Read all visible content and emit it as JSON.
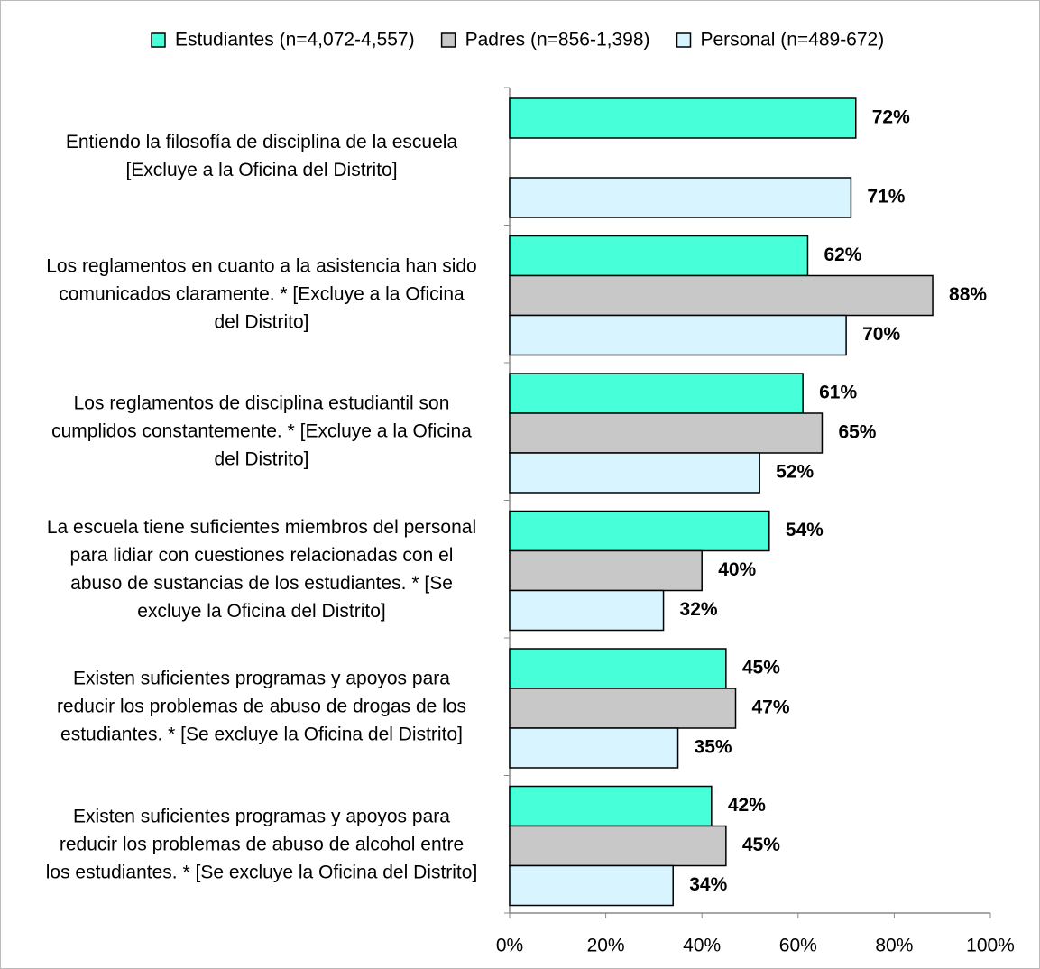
{
  "chart_data": {
    "type": "bar",
    "orientation": "horizontal",
    "categories": [
      "Entiendo la filosofía de disciplina de la escuela [Excluye a la Oficina del Distrito]",
      "Los reglamentos en cuanto a la asistencia han sido comunicados claramente. * [Excluye a la Oficina del Distrito]",
      "Los reglamentos de disciplina estudiantil son cumplidos constantemente. * [Excluye a la Oficina del Distrito]",
      "La escuela tiene suficientes miembros del personal para lidiar con cuestiones relacionadas con el abuso de sustancias de los estudiantes. * [Se excluye la Oficina del Distrito]",
      "Existen suficientes programas y apoyos para reducir los problemas de abuso de drogas de los estudiantes. * [Se excluye la Oficina del Distrito]",
      "Existen suficientes programas y apoyos para reducir los problemas de abuso de alcohol entre los estudiantes. * [Se excluye la Oficina del Distrito]"
    ],
    "series": [
      {
        "name": "Estudiantes (n=4,072-4,557)",
        "color": "#47ffd9",
        "values": [
          72,
          62,
          61,
          54,
          45,
          42
        ],
        "value_labels": [
          "72%",
          "62%",
          "61%",
          "54%",
          "45%",
          "42%"
        ]
      },
      {
        "name": "Padres (n=856-1,398)",
        "color": "#c8c8c8",
        "values": [
          null,
          88,
          65,
          40,
          47,
          45
        ],
        "value_labels": [
          null,
          "88%",
          "65%",
          "40%",
          "47%",
          "45%"
        ]
      },
      {
        "name": "Personal (n=489-672)",
        "color": "#d7f4ff",
        "values": [
          71,
          70,
          52,
          32,
          35,
          34
        ],
        "value_labels": [
          "71%",
          "70%",
          "52%",
          "32%",
          "35%",
          "34%"
        ]
      }
    ],
    "xlim": [
      0,
      100
    ],
    "xticks": [
      {
        "value": 0,
        "label": "0%"
      },
      {
        "value": 20,
        "label": "20%"
      },
      {
        "value": 40,
        "label": "40%"
      },
      {
        "value": 60,
        "label": "60%"
      },
      {
        "value": 80,
        "label": "80%"
      },
      {
        "value": 100,
        "label": "100%"
      }
    ],
    "legend": "top"
  }
}
